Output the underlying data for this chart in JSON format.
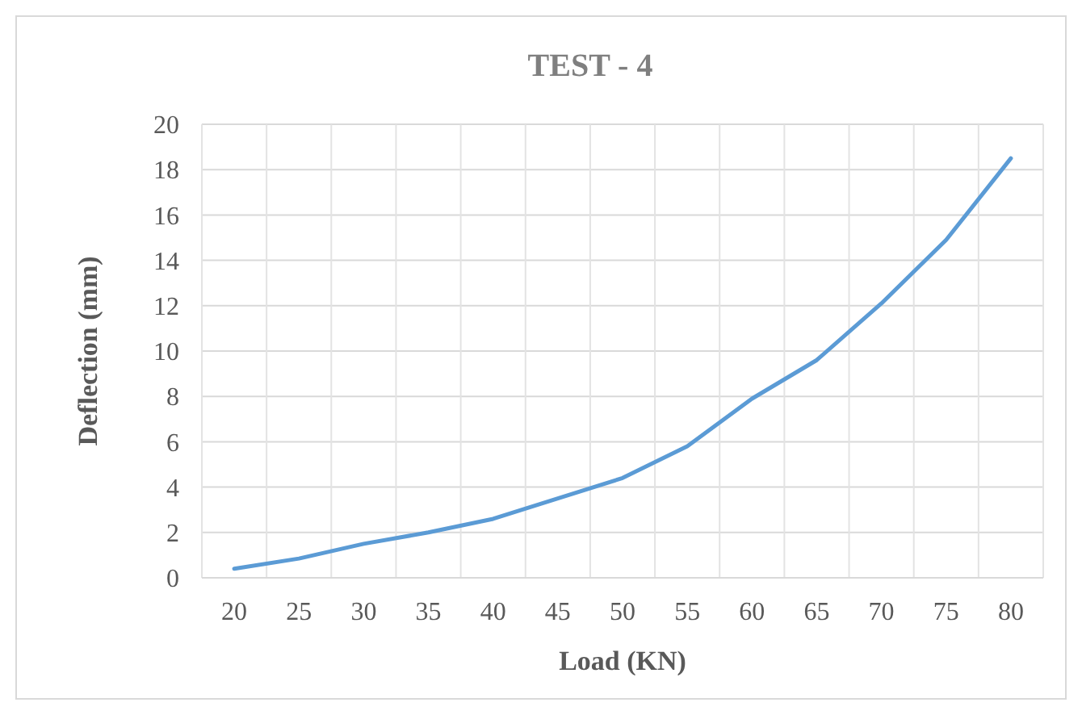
{
  "chart_data": {
    "type": "line",
    "title": "TEST - 4",
    "xlabel": "Load (KN)",
    "ylabel": "Deflection (mm)",
    "categories": [
      "20",
      "25",
      "30",
      "35",
      "40",
      "45",
      "50",
      "55",
      "60",
      "65",
      "70",
      "75",
      "80"
    ],
    "series": [
      {
        "color": "#5b9bd5",
        "values": [
          0.4,
          0.85,
          1.5,
          2.0,
          2.6,
          3.5,
          4.4,
          5.8,
          7.9,
          9.6,
          12.1,
          14.9,
          18.5
        ]
      }
    ],
    "ylim": [
      0,
      20
    ],
    "yticks": [
      0,
      2,
      4,
      6,
      8,
      10,
      12,
      14,
      16,
      18,
      20
    ],
    "grid": true,
    "marker": "none",
    "line_style": "solid"
  }
}
